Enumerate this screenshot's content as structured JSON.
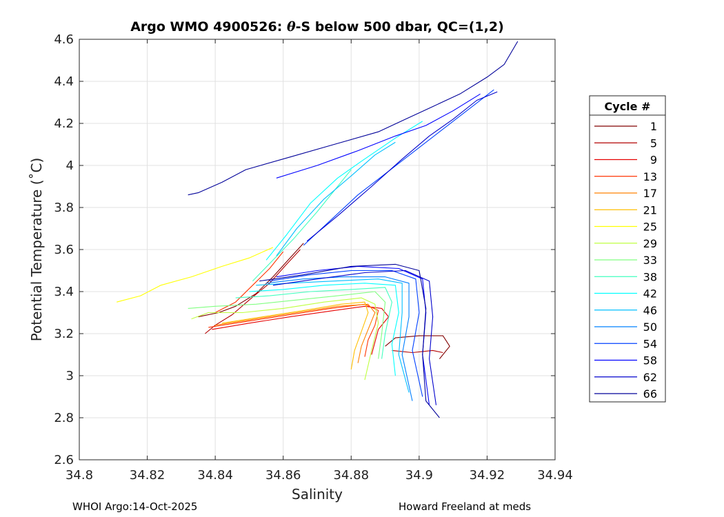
{
  "footer": {
    "left": "WHOI Argo:14-Oct-2025",
    "right": "Howard Freeland at meds"
  },
  "chart_data": {
    "type": "line",
    "title_parts": [
      "Argo WMO 4900526: ",
      "θ",
      "-S below 500 dbar,  QC=(1,2)"
    ],
    "xlabel": "Salinity",
    "ylabel": "Potential Temperature (˚C)",
    "xlim": [
      34.8,
      34.94
    ],
    "ylim": [
      2.6,
      4.6
    ],
    "xticks": [
      34.8,
      34.82,
      34.84,
      34.86,
      34.88,
      34.9,
      34.92,
      34.94
    ],
    "xtick_labels": [
      "34.8",
      "34.82",
      "34.84",
      "34.86",
      "34.88",
      "34.9",
      "34.92",
      "34.94"
    ],
    "yticks": [
      2.6,
      2.8,
      3.0,
      3.2,
      3.4,
      3.6,
      3.8,
      4.0,
      4.2,
      4.4,
      4.6
    ],
    "ytick_labels": [
      "2.6",
      "2.8",
      "3",
      "3.2",
      "3.4",
      "3.6",
      "3.8",
      "4",
      "4.2",
      "4.4",
      "4.6"
    ],
    "grid": true,
    "legend": {
      "title": "Cycle #",
      "placement": "outside-right",
      "entries": [
        {
          "label": "1",
          "color": "#800000"
        },
        {
          "label": "5",
          "color": "#b30000"
        },
        {
          "label": "9",
          "color": "#e60000"
        },
        {
          "label": "13",
          "color": "#ff3300"
        },
        {
          "label": "17",
          "color": "#ff8000"
        },
        {
          "label": "21",
          "color": "#ffbf00"
        },
        {
          "label": "25",
          "color": "#ffff00"
        },
        {
          "label": "29",
          "color": "#bfff40"
        },
        {
          "label": "33",
          "color": "#80ff80"
        },
        {
          "label": "38",
          "color": "#40ffbf"
        },
        {
          "label": "42",
          "color": "#00ffff"
        },
        {
          "label": "46",
          "color": "#00bfff"
        },
        {
          "label": "50",
          "color": "#0080ff"
        },
        {
          "label": "54",
          "color": "#0040ff"
        },
        {
          "label": "58",
          "color": "#0000ff"
        },
        {
          "label": "62",
          "color": "#0000cc"
        },
        {
          "label": "66",
          "color": "#000099"
        }
      ]
    },
    "series": [
      {
        "cycle": "1",
        "color": "#800000",
        "points": [
          [
            34.835,
            3.28
          ],
          [
            34.841,
            3.3
          ],
          [
            34.846,
            3.33
          ],
          [
            34.852,
            3.39
          ],
          [
            34.857,
            3.47
          ],
          [
            34.862,
            3.56
          ],
          [
            34.866,
            3.63
          ]
        ]
      },
      {
        "cycle": "1",
        "color": "#800000",
        "points": [
          [
            34.89,
            3.14
          ],
          [
            34.893,
            3.18
          ],
          [
            34.9,
            3.19
          ],
          [
            34.907,
            3.19
          ],
          [
            34.909,
            3.14
          ],
          [
            34.906,
            3.08
          ]
        ]
      },
      {
        "cycle": "5",
        "color": "#b30000",
        "points": [
          [
            34.837,
            3.2
          ],
          [
            34.84,
            3.24
          ],
          [
            34.845,
            3.29
          ],
          [
            34.85,
            3.36
          ],
          [
            34.856,
            3.44
          ],
          [
            34.861,
            3.53
          ],
          [
            34.865,
            3.6
          ]
        ]
      },
      {
        "cycle": "5",
        "color": "#b30000",
        "points": [
          [
            34.892,
            3.12
          ],
          [
            34.898,
            3.11
          ],
          [
            34.904,
            3.12
          ],
          [
            34.907,
            3.11
          ]
        ]
      },
      {
        "cycle": "9",
        "color": "#e60000",
        "points": [
          [
            34.839,
            3.22
          ],
          [
            34.85,
            3.25
          ],
          [
            34.862,
            3.28
          ],
          [
            34.875,
            3.31
          ],
          [
            34.884,
            3.33
          ],
          [
            34.889,
            3.32
          ],
          [
            34.891,
            3.28
          ],
          [
            34.888,
            3.22
          ],
          [
            34.887,
            3.16
          ],
          [
            34.886,
            3.1
          ]
        ]
      },
      {
        "cycle": "13",
        "color": "#ff3300",
        "points": [
          [
            34.838,
            3.23
          ],
          [
            34.85,
            3.26
          ],
          [
            34.862,
            3.29
          ],
          [
            34.874,
            3.32
          ],
          [
            34.884,
            3.34
          ],
          [
            34.888,
            3.31
          ],
          [
            34.887,
            3.24
          ],
          [
            34.885,
            3.17
          ],
          [
            34.884,
            3.09
          ]
        ]
      },
      {
        "cycle": "13",
        "color": "#ff3300",
        "points": [
          [
            34.84,
            3.3
          ],
          [
            34.846,
            3.35
          ],
          [
            34.851,
            3.43
          ],
          [
            34.856,
            3.51
          ],
          [
            34.86,
            3.59
          ]
        ]
      },
      {
        "cycle": "17",
        "color": "#ff8000",
        "points": [
          [
            34.84,
            3.24
          ],
          [
            34.852,
            3.27
          ],
          [
            34.864,
            3.3
          ],
          [
            34.876,
            3.33
          ],
          [
            34.885,
            3.34
          ],
          [
            34.887,
            3.3
          ],
          [
            34.885,
            3.22
          ],
          [
            34.883,
            3.14
          ],
          [
            34.882,
            3.06
          ]
        ]
      },
      {
        "cycle": "21",
        "color": "#ffbf00",
        "points": [
          [
            34.842,
            3.25
          ],
          [
            34.854,
            3.28
          ],
          [
            34.866,
            3.31
          ],
          [
            34.877,
            3.34
          ],
          [
            34.884,
            3.35
          ],
          [
            34.885,
            3.3
          ],
          [
            34.883,
            3.21
          ],
          [
            34.881,
            3.12
          ],
          [
            34.88,
            3.03
          ]
        ]
      },
      {
        "cycle": "25",
        "color": "#ffff00",
        "points": [
          [
            34.811,
            3.35
          ],
          [
            34.818,
            3.38
          ],
          [
            34.824,
            3.43
          ],
          [
            34.833,
            3.47
          ],
          [
            34.842,
            3.52
          ],
          [
            34.85,
            3.56
          ],
          [
            34.857,
            3.61
          ]
        ]
      },
      {
        "cycle": "29",
        "color": "#bfff40",
        "points": [
          [
            34.833,
            3.27
          ],
          [
            34.838,
            3.3
          ],
          [
            34.848,
            3.3
          ],
          [
            34.86,
            3.32
          ],
          [
            34.872,
            3.35
          ],
          [
            34.883,
            3.37
          ],
          [
            34.887,
            3.34
          ],
          [
            34.888,
            3.25
          ],
          [
            34.886,
            3.12
          ],
          [
            34.884,
            2.98
          ]
        ]
      },
      {
        "cycle": "33",
        "color": "#80ff80",
        "points": [
          [
            34.832,
            3.32
          ],
          [
            34.84,
            3.33
          ],
          [
            34.852,
            3.34
          ],
          [
            34.864,
            3.36
          ],
          [
            34.876,
            3.38
          ],
          [
            34.887,
            3.4
          ],
          [
            34.89,
            3.35
          ],
          [
            34.889,
            3.2
          ],
          [
            34.888,
            3.08
          ]
        ]
      },
      {
        "cycle": "38",
        "color": "#40ffbf",
        "points": [
          [
            34.846,
            3.37
          ],
          [
            34.856,
            3.38
          ],
          [
            34.868,
            3.4
          ],
          [
            34.88,
            3.41
          ],
          [
            34.89,
            3.42
          ],
          [
            34.892,
            3.35
          ],
          [
            34.89,
            3.2
          ],
          [
            34.889,
            3.08
          ]
        ]
      },
      {
        "cycle": "38",
        "color": "#40ffbf",
        "points": [
          [
            34.851,
            3.45
          ],
          [
            34.857,
            3.55
          ],
          [
            34.863,
            3.65
          ],
          [
            34.87,
            3.78
          ],
          [
            34.876,
            3.9
          ],
          [
            34.88,
            3.98
          ]
        ]
      },
      {
        "cycle": "42",
        "color": "#00ffff",
        "points": [
          [
            34.85,
            3.4
          ],
          [
            34.86,
            3.41
          ],
          [
            34.872,
            3.43
          ],
          [
            34.884,
            3.44
          ],
          [
            34.893,
            3.43
          ],
          [
            34.894,
            3.3
          ],
          [
            34.892,
            3.15
          ],
          [
            34.893,
            3.0
          ]
        ]
      },
      {
        "cycle": "42",
        "color": "#00ffff",
        "points": [
          [
            34.855,
            3.55
          ],
          [
            34.861,
            3.67
          ],
          [
            34.868,
            3.82
          ],
          [
            34.876,
            3.94
          ],
          [
            34.883,
            4.02
          ],
          [
            34.893,
            4.13
          ],
          [
            34.901,
            4.21
          ]
        ]
      },
      {
        "cycle": "46",
        "color": "#00bfff",
        "points": [
          [
            34.852,
            3.43
          ],
          [
            34.862,
            3.44
          ],
          [
            34.875,
            3.45
          ],
          [
            34.888,
            3.46
          ],
          [
            34.895,
            3.44
          ],
          [
            34.895,
            3.3
          ],
          [
            34.894,
            3.1
          ],
          [
            34.897,
            2.92
          ]
        ]
      },
      {
        "cycle": "46",
        "color": "#00bfff",
        "points": [
          [
            34.858,
            3.57
          ],
          [
            34.864,
            3.7
          ],
          [
            34.872,
            3.84
          ],
          [
            34.88,
            3.95
          ],
          [
            34.887,
            4.05
          ],
          [
            34.893,
            4.11
          ]
        ]
      },
      {
        "cycle": "50",
        "color": "#0080ff",
        "points": [
          [
            34.855,
            3.44
          ],
          [
            34.866,
            3.46
          ],
          [
            34.878,
            3.47
          ],
          [
            34.89,
            3.47
          ],
          [
            34.897,
            3.44
          ],
          [
            34.897,
            3.28
          ],
          [
            34.895,
            3.1
          ],
          [
            34.898,
            2.88
          ]
        ]
      },
      {
        "cycle": "54",
        "color": "#0040ff",
        "points": [
          [
            34.856,
            3.45
          ],
          [
            34.868,
            3.48
          ],
          [
            34.88,
            3.5
          ],
          [
            34.892,
            3.5
          ],
          [
            34.899,
            3.46
          ],
          [
            34.9,
            3.3
          ],
          [
            34.898,
            3.12
          ],
          [
            34.901,
            2.9
          ]
        ]
      },
      {
        "cycle": "54",
        "color": "#0040ff",
        "points": [
          [
            34.866,
            3.62
          ],
          [
            34.874,
            3.74
          ],
          [
            34.882,
            3.86
          ],
          [
            34.89,
            3.96
          ],
          [
            34.898,
            4.06
          ],
          [
            34.906,
            4.16
          ],
          [
            34.914,
            4.26
          ],
          [
            34.922,
            4.36
          ]
        ]
      },
      {
        "cycle": "58",
        "color": "#0000ff",
        "points": [
          [
            34.858,
            3.47
          ],
          [
            34.87,
            3.5
          ],
          [
            34.882,
            3.52
          ],
          [
            34.894,
            3.51
          ],
          [
            34.901,
            3.46
          ],
          [
            34.902,
            3.3
          ],
          [
            34.901,
            3.1
          ],
          [
            34.903,
            2.86
          ]
        ]
      },
      {
        "cycle": "58",
        "color": "#0000ff",
        "points": [
          [
            34.858,
            3.94
          ],
          [
            34.87,
            4.0
          ],
          [
            34.882,
            4.07
          ],
          [
            34.893,
            4.14
          ],
          [
            34.902,
            4.19
          ],
          [
            34.91,
            4.26
          ],
          [
            34.918,
            4.34
          ]
        ]
      },
      {
        "cycle": "62",
        "color": "#0000cc",
        "points": [
          [
            34.857,
            3.43
          ],
          [
            34.87,
            3.46
          ],
          [
            34.884,
            3.49
          ],
          [
            34.896,
            3.5
          ],
          [
            34.903,
            3.45
          ],
          [
            34.904,
            3.28
          ],
          [
            34.903,
            3.08
          ],
          [
            34.905,
            2.86
          ]
        ]
      },
      {
        "cycle": "62",
        "color": "#0000cc",
        "points": [
          [
            34.867,
            3.64
          ],
          [
            34.876,
            3.76
          ],
          [
            34.886,
            3.9
          ],
          [
            34.895,
            4.03
          ],
          [
            34.903,
            4.14
          ],
          [
            34.91,
            4.22
          ],
          [
            34.917,
            4.31
          ],
          [
            34.923,
            4.35
          ]
        ]
      },
      {
        "cycle": "66",
        "color": "#000099",
        "points": [
          [
            34.832,
            3.86
          ],
          [
            34.835,
            3.87
          ],
          [
            34.842,
            3.92
          ],
          [
            34.849,
            3.98
          ],
          [
            34.862,
            4.04
          ],
          [
            34.875,
            4.1
          ],
          [
            34.888,
            4.16
          ],
          [
            34.896,
            4.22
          ],
          [
            34.904,
            4.28
          ],
          [
            34.912,
            4.34
          ],
          [
            34.92,
            4.42
          ],
          [
            34.925,
            4.48
          ],
          [
            34.929,
            4.59
          ]
        ]
      },
      {
        "cycle": "66",
        "color": "#000099",
        "points": [
          [
            34.853,
            3.45
          ],
          [
            34.866,
            3.48
          ],
          [
            34.88,
            3.52
          ],
          [
            34.893,
            3.53
          ],
          [
            34.9,
            3.5
          ],
          [
            34.902,
            3.32
          ],
          [
            34.901,
            3.1
          ],
          [
            34.902,
            2.88
          ],
          [
            34.906,
            2.8
          ]
        ]
      }
    ]
  }
}
